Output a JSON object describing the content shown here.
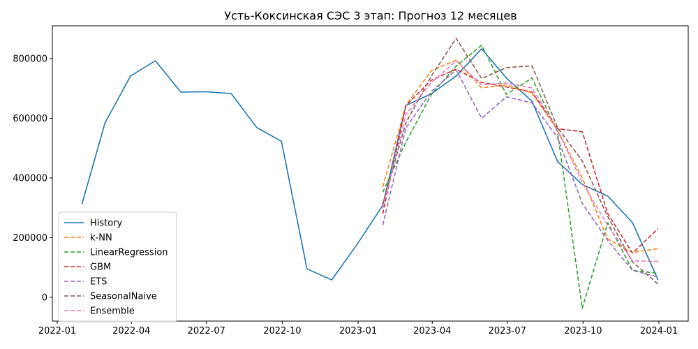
{
  "chart_data": {
    "type": "line",
    "title": "Усть-Коксинская СЭС 3 этап: Прогноз 12 месяцев",
    "xlabel": "",
    "ylabel": "",
    "x_range": [
      "2022-01-01",
      "2024-01-01"
    ],
    "ylim": [
      -80000,
      910000
    ],
    "x_ticks": [
      {
        "date": "2022-01-01",
        "label": "2022-01"
      },
      {
        "date": "2022-04-01",
        "label": "2022-04"
      },
      {
        "date": "2022-07-01",
        "label": "2022-07"
      },
      {
        "date": "2022-10-01",
        "label": "2022-10"
      },
      {
        "date": "2023-01-01",
        "label": "2023-01"
      },
      {
        "date": "2023-04-01",
        "label": "2023-04"
      },
      {
        "date": "2023-07-01",
        "label": "2023-07"
      },
      {
        "date": "2023-10-01",
        "label": "2023-10"
      },
      {
        "date": "2024-01-01",
        "label": "2024-01"
      }
    ],
    "y_ticks": [
      0,
      200000,
      400000,
      600000,
      800000
    ],
    "grid": false,
    "legend_position": "lower-left",
    "series": [
      {
        "name": "History",
        "color": "#1f77b4",
        "dashed": false,
        "x": [
          "2022-01-31",
          "2022-02-28",
          "2022-03-31",
          "2022-04-30",
          "2022-05-31",
          "2022-06-30",
          "2022-07-31",
          "2022-08-31",
          "2022-09-30",
          "2022-10-31",
          "2022-11-30",
          "2022-12-31",
          "2023-01-31",
          "2023-02-28",
          "2023-03-31",
          "2023-04-30",
          "2023-05-31",
          "2023-06-30",
          "2023-07-31",
          "2023-08-31",
          "2023-09-30",
          "2023-10-31",
          "2023-11-30",
          "2023-12-31"
        ],
        "y": [
          312000,
          585000,
          742000,
          793000,
          688000,
          689000,
          683000,
          569000,
          523000,
          95000,
          58000,
          178000,
          308000,
          643000,
          682000,
          742000,
          833000,
          735000,
          657000,
          455000,
          378000,
          339000,
          250000,
          58000
        ]
      },
      {
        "name": "k-NN",
        "color": "#ff7f0e",
        "dashed": true,
        "x": [
          "2023-01-31",
          "2023-02-28",
          "2023-03-31",
          "2023-04-30",
          "2023-05-31",
          "2023-06-30",
          "2023-07-31",
          "2023-08-31",
          "2023-09-30",
          "2023-10-31",
          "2023-11-30",
          "2023-12-31"
        ],
        "y": [
          370000,
          643000,
          760000,
          795000,
          702000,
          712000,
          685000,
          560000,
          400000,
          195000,
          150000,
          163000
        ]
      },
      {
        "name": "LinearRegression",
        "color": "#2ca02c",
        "dashed": true,
        "x": [
          "2023-01-31",
          "2023-02-28",
          "2023-03-31",
          "2023-04-30",
          "2023-05-31",
          "2023-06-30",
          "2023-07-31",
          "2023-08-31",
          "2023-09-30",
          "2023-10-31",
          "2023-11-30",
          "2023-12-31"
        ],
        "y": [
          352000,
          520000,
          680000,
          775000,
          845000,
          680000,
          735000,
          555000,
          -37000,
          250000,
          90000,
          80000
        ]
      },
      {
        "name": "GBM",
        "color": "#d62728",
        "dashed": true,
        "x": [
          "2023-01-31",
          "2023-02-28",
          "2023-03-31",
          "2023-04-30",
          "2023-05-31",
          "2023-06-30",
          "2023-07-31",
          "2023-08-31",
          "2023-09-30",
          "2023-10-31",
          "2023-11-30",
          "2023-12-31"
        ],
        "y": [
          280000,
          643000,
          728000,
          765000,
          720000,
          705000,
          688000,
          565000,
          555000,
          280000,
          148000,
          230000
        ]
      },
      {
        "name": "ETS",
        "color": "#9467bd",
        "dashed": true,
        "x": [
          "2023-01-31",
          "2023-02-28",
          "2023-03-31",
          "2023-04-30",
          "2023-05-31",
          "2023-06-30",
          "2023-07-31",
          "2023-08-31",
          "2023-09-30",
          "2023-10-31",
          "2023-11-30",
          "2023-12-31"
        ],
        "y": [
          242000,
          568000,
          690000,
          762000,
          600000,
          672000,
          652000,
          535000,
          315000,
          190000,
          90000,
          68000
        ]
      },
      {
        "name": "SeasonalNaive",
        "color": "#8c564b",
        "dashed": true,
        "x": [
          "2023-01-31",
          "2023-02-28",
          "2023-03-31",
          "2023-04-30",
          "2023-05-31",
          "2023-06-30",
          "2023-07-31",
          "2023-08-31",
          "2023-09-30",
          "2023-10-31",
          "2023-11-30",
          "2023-12-31"
        ],
        "y": [
          312000,
          585000,
          742000,
          868000,
          733000,
          770000,
          776000,
          569000,
          457000,
          270000,
          118000,
          44000
        ]
      },
      {
        "name": "Ensemble",
        "color": "#e377c2",
        "dashed": true,
        "x": [
          "2023-01-31",
          "2023-02-28",
          "2023-03-31",
          "2023-04-30",
          "2023-05-31",
          "2023-06-30",
          "2023-07-31",
          "2023-08-31",
          "2023-09-30",
          "2023-10-31",
          "2023-11-30",
          "2023-12-31"
        ],
        "y": [
          300000,
          612000,
          720000,
          792000,
          712000,
          718000,
          702000,
          560000,
          385000,
          240000,
          122000,
          120000
        ]
      }
    ]
  }
}
